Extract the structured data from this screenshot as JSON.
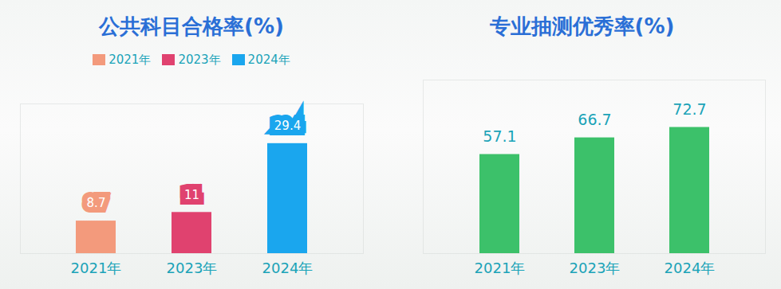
{
  "chart_data": [
    {
      "type": "bar",
      "title": "公共科目合格率(%)",
      "categories": [
        "2021年",
        "2023年",
        "2024年"
      ],
      "values": [
        8.7,
        11,
        29.4
      ],
      "colors": [
        "#f39a7c",
        "#e0426f",
        "#1aa6ee"
      ],
      "ylim": [
        0,
        40
      ],
      "tick_labels": "x",
      "data_labels": true,
      "legend": "top"
    },
    {
      "type": "bar",
      "title": "专业抽测优秀率(%)",
      "categories": [
        "2021年",
        "2023年",
        "2024年"
      ],
      "values": [
        57.1,
        66.7,
        72.7
      ],
      "color": "#3cc16a",
      "ylim": [
        0,
        100
      ],
      "tick_labels": "x",
      "data_labels": true
    }
  ]
}
